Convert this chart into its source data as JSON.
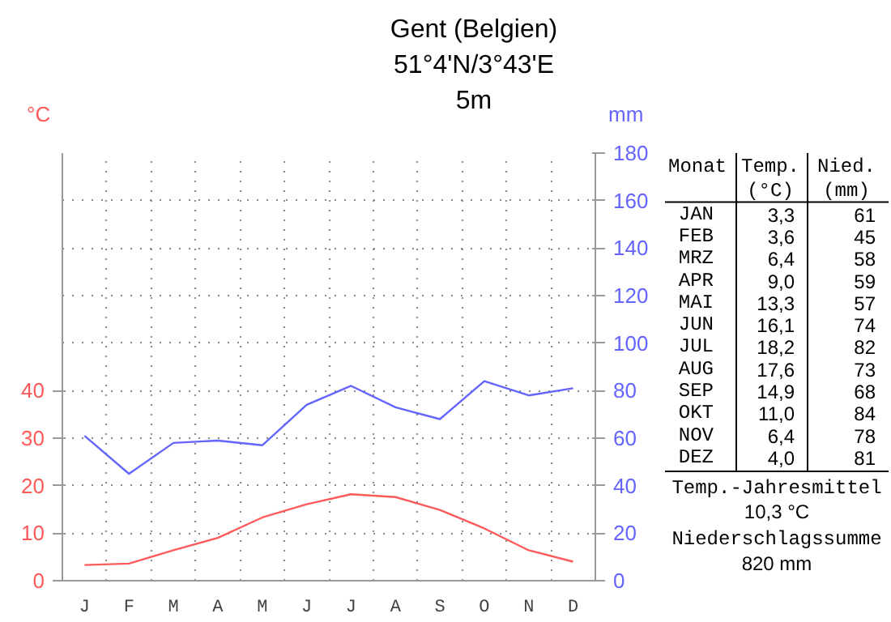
{
  "chart_data": {
    "type": "line",
    "title": "Gent (Belgien)",
    "subtitle": "51°4'N/3°43'E",
    "ylabel": "°C",
    "y2label": "mm",
    "categories": [
      "J",
      "F",
      "M",
      "A",
      "M",
      "J",
      "J",
      "A",
      "S",
      "O",
      "N",
      "D"
    ],
    "series": [
      {
        "color": "#ff5a5a",
        "values": [
          3.3,
          3.6,
          6.4,
          9.0,
          13.3,
          16.1,
          18.2,
          17.6,
          14.9,
          11.0,
          6.4,
          4.0
        ]
      },
      {
        "color": "#6464ff",
        "axis": "y2",
        "values": [
          61,
          45,
          58,
          59,
          57,
          74,
          82,
          73,
          68,
          84,
          78,
          81
        ]
      }
    ],
    "ylim": [
      0,
      90
    ],
    "yticks": [
      0,
      10,
      20,
      30,
      40
    ],
    "y2lim": [
      0,
      180
    ],
    "y2ticks": [
      0,
      20,
      40,
      60,
      80,
      100,
      120,
      140,
      160,
      180
    ],
    "grid": true,
    "marker": "none",
    "line_style": "solid",
    "annotations": [
      "5m",
      "Monat",
      "Temp. (°C)",
      "Nied. (mm)",
      "JAN",
      "FEB",
      "MRZ",
      "APR",
      "MAI",
      "JUN",
      "JUL",
      "AUG",
      "SEP",
      "OKT",
      "NOV",
      "DEZ",
      "3,3",
      "3,6",
      "6,4",
      "9,0",
      "13,3",
      "16,1",
      "18,2",
      "17,6",
      "14,9",
      "11,0",
      "6,4",
      "4,0",
      "61",
      "45",
      "58",
      "59",
      "57",
      "74",
      "82",
      "73",
      "68",
      "84",
      "78",
      "81",
      "Temp.-Jahresmittel",
      "10,3 °C",
      "Niederschlagssumme",
      "820 mm"
    ]
  }
}
